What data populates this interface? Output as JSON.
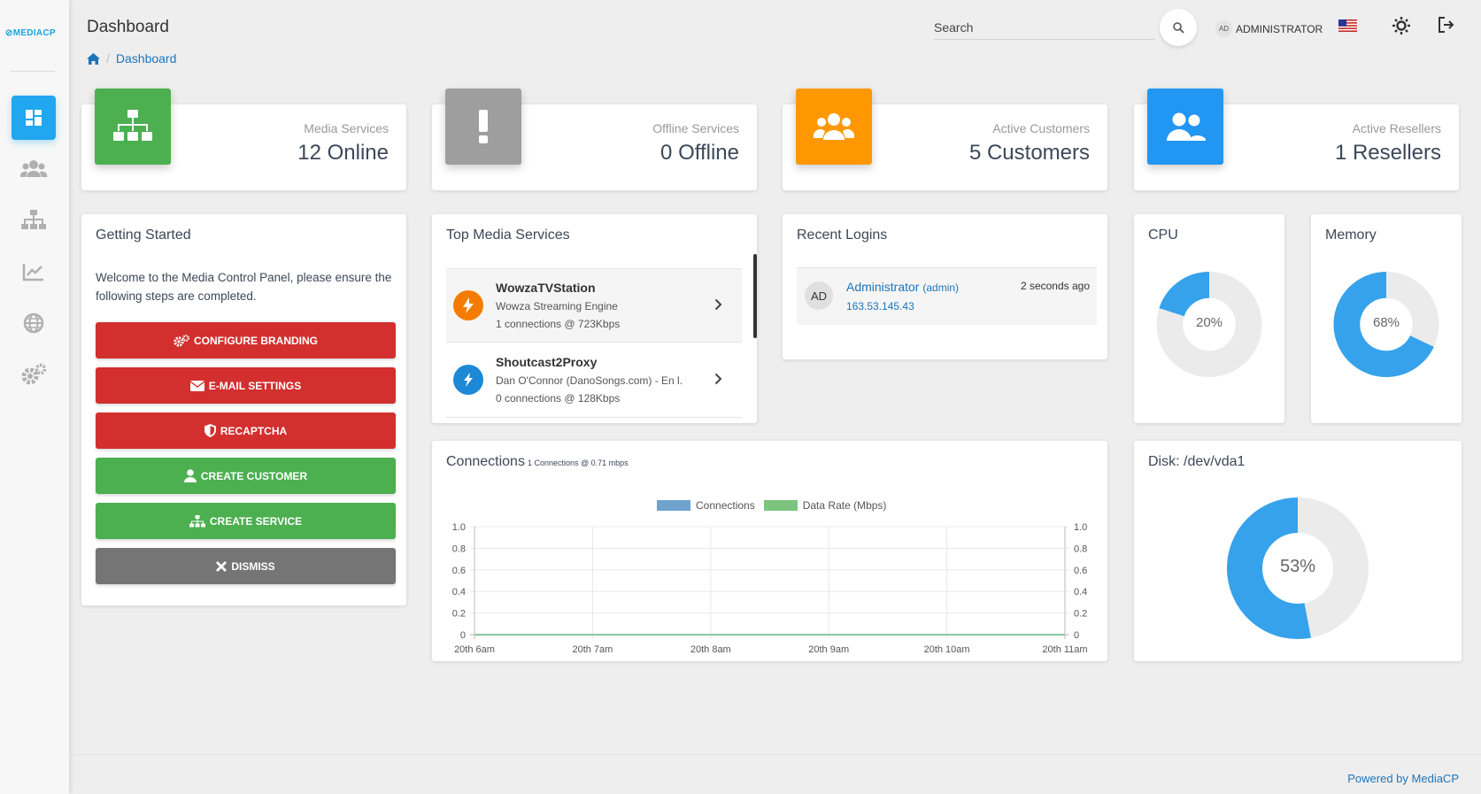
{
  "app": {
    "logo_text": "MEDIACP",
    "page_title": "Dashboard",
    "breadcrumb": {
      "current": "Dashboard"
    }
  },
  "header": {
    "search_placeholder": "Search",
    "user_initials": "AD",
    "user_name": "ADMINISTRATOR"
  },
  "sidebar": {
    "items": [
      {
        "icon": "dashboard-icon",
        "active": true
      },
      {
        "icon": "users-icon",
        "active": false
      },
      {
        "icon": "sitemap-icon",
        "active": false
      },
      {
        "icon": "chart-line-icon",
        "active": false
      },
      {
        "icon": "globe-icon",
        "active": false
      },
      {
        "icon": "cogs-icon",
        "active": false
      }
    ]
  },
  "stats": [
    {
      "label": "Media Services",
      "value": "12 Online",
      "color": "#4caf50",
      "icon": "sitemap-icon"
    },
    {
      "label": "Offline Services",
      "value": "0 Offline",
      "color": "#9e9e9e",
      "icon": "exclamation-icon"
    },
    {
      "label": "Active Customers",
      "value": "5 Customers",
      "color": "#ff9800",
      "icon": "users-icon"
    },
    {
      "label": "Active Resellers",
      "value": "1 Resellers",
      "color": "#2196f3",
      "icon": "user-friends-icon"
    }
  ],
  "getting_started": {
    "title": "Getting Started",
    "text": "Welcome to the Media Control Panel, please ensure the following steps are completed.",
    "buttons": [
      {
        "label": "CONFIGURE BRANDING",
        "icon": "cogs-icon"
      },
      {
        "label": "E-MAIL SETTINGS",
        "icon": "envelope-icon"
      },
      {
        "label": "RECAPTCHA",
        "icon": "shield-icon"
      },
      {
        "label": "CREATE CUSTOMER",
        "icon": "user-icon"
      },
      {
        "label": "CREATE SERVICE",
        "icon": "sitemap-icon"
      },
      {
        "label": "DISMISS",
        "icon": "close-icon"
      }
    ]
  },
  "top_media": {
    "title": "Top Media Services",
    "items": [
      {
        "name": "WowzaTVStation",
        "engine": "Wowza Streaming Engine",
        "connections": "1 connections @ 723Kbps",
        "logo_color": "#f57c00"
      },
      {
        "name": "Shoutcast2Proxy",
        "engine": "Dan O'Connor (DanoSongs.com) - En l...",
        "connections": "0 connections @ 128Kbps",
        "logo_color": "#1c88d6"
      }
    ]
  },
  "recent_logins": {
    "title": "Recent Logins",
    "items": [
      {
        "initials": "AD",
        "name": "Administrator",
        "role": "(admin)",
        "ip": "163.53.145.43",
        "time": "2 seconds ago"
      }
    ]
  },
  "cpu": {
    "title": "CPU",
    "percent": 20,
    "label": "20%"
  },
  "memory": {
    "title": "Memory",
    "percent": 68,
    "label": "68%"
  },
  "disk": {
    "title": "Disk: /dev/vda1",
    "percent": 53,
    "label": "53%"
  },
  "connections": {
    "title": "Connections",
    "subtitle": "1 Connections @ 0.71 mbps"
  },
  "chart_data": {
    "type": "line",
    "categories": [
      "20th 6am",
      "20th 7am",
      "20th 8am",
      "20th 9am",
      "20th 10am",
      "20th 11am"
    ],
    "series": [
      {
        "name": "Connections",
        "color": "#6fa2cf",
        "values": [
          0,
          0,
          0,
          0,
          0,
          0
        ]
      },
      {
        "name": "Data Rate (Mbps)",
        "color": "#7bc57f",
        "values": [
          0,
          0,
          0,
          0,
          0,
          0
        ]
      }
    ],
    "y_ticks": [
      "1.0",
      "0.8",
      "0.6",
      "0.4",
      "0.2",
      "0"
    ],
    "ylim": [
      0,
      1.0
    ],
    "legend": "top"
  },
  "footer": {
    "text": "Powered by MediaCP"
  },
  "colors": {
    "accent": "#20a7f0",
    "donut_fill": "#36a2eb",
    "donut_track": "#ebebeb",
    "link": "#1c75bc"
  }
}
